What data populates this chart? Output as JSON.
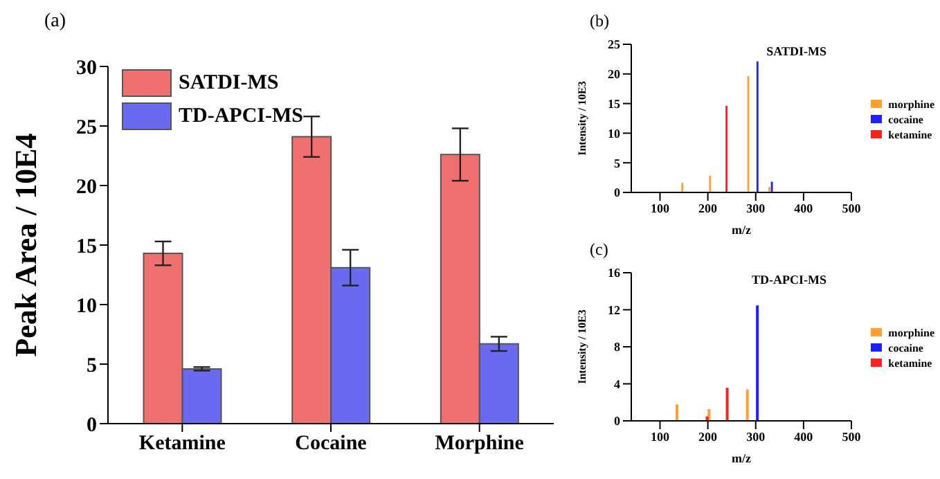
{
  "chart_data": [
    {
      "type": "bar",
      "title": "(a)",
      "ylabel": "Peak Area / 10E4",
      "categories": [
        "Ketamine",
        "Cocaine",
        "Morphine"
      ],
      "ylim": [
        0,
        30
      ],
      "yticks": [
        0,
        5,
        10,
        15,
        20,
        25,
        30
      ],
      "legend": "top left",
      "series": [
        {
          "name": "SATDI-MS",
          "color": "#f07070",
          "values": [
            14.3,
            24.1,
            22.6
          ],
          "errors": [
            1.0,
            1.7,
            2.2
          ]
        },
        {
          "name": "TD-APCI-MS",
          "color": "#6a6af0",
          "values": [
            4.6,
            13.1,
            6.7
          ],
          "errors": [
            0.15,
            1.5,
            0.6
          ]
        }
      ]
    },
    {
      "type": "bar",
      "title": "(b)",
      "annotations": [
        "SATDI-MS"
      ],
      "xlabel": "m/z",
      "ylabel": "Intensity / 10E3",
      "xlim": [
        40,
        500
      ],
      "xticks": [
        100,
        200,
        300,
        400,
        500
      ],
      "ylim": [
        0,
        25
      ],
      "yticks": [
        0,
        5,
        10,
        15,
        20,
        25
      ],
      "legend": "right",
      "series": [
        {
          "name": "morphine",
          "color": "#ffa030",
          "x": [
            148,
            206,
            286,
            330
          ],
          "values": [
            1.5,
            2.7,
            19.5,
            0.8
          ]
        },
        {
          "name": "cocaine",
          "color": "#2020ff",
          "x": [
            304,
            334
          ],
          "values": [
            22,
            1.7
          ]
        },
        {
          "name": "ketamine",
          "color": "#ff2020",
          "x": [
            238
          ],
          "values": [
            14.5
          ]
        }
      ]
    },
    {
      "type": "bar",
      "title": "(c)",
      "annotations": [
        "TD-APCI-MS"
      ],
      "xlabel": "m/z",
      "ylabel": "Intensity / 10E3",
      "xlim": [
        40,
        500
      ],
      "xticks": [
        100,
        200,
        300,
        400,
        500
      ],
      "ylim": [
        0,
        16
      ],
      "yticks": [
        0,
        4,
        8,
        12,
        16
      ],
      "legend": "right",
      "series": [
        {
          "name": "morphine",
          "color": "#ffa030",
          "x": [
            139,
            206,
            286
          ],
          "values": [
            1.7,
            1.2,
            3.3
          ]
        },
        {
          "name": "cocaine",
          "color": "#2020ff",
          "x": [
            304
          ],
          "values": [
            12.4
          ]
        },
        {
          "name": "ketamine",
          "color": "#ff2020",
          "x": [
            196,
            238
          ],
          "values": [
            0.4,
            3.5
          ]
        }
      ]
    }
  ]
}
